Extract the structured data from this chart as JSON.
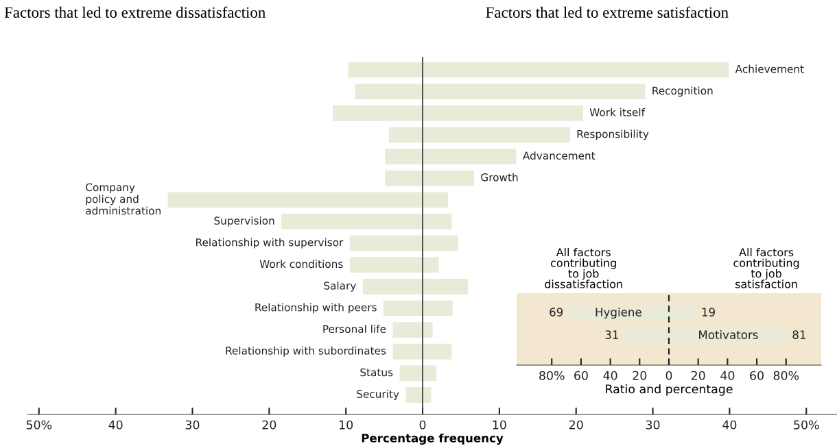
{
  "chart_data": [
    {
      "type": "bar",
      "orientation": "horizontal",
      "xlabel": "Percentage frequency",
      "annotations": [
        "Factors that led to extreme dissatisfaction",
        "Factors that led to extreme satisfaction"
      ],
      "categories": [
        "Achievement",
        "Recognition",
        "Work itself",
        "Responsibility",
        "Advancement",
        "Growth",
        "Company\npolicy and\nadministration",
        "Supervision",
        "Relationship with supervisor",
        "Work conditions",
        "Salary",
        "Relationship with peers",
        "Personal life",
        "Relationship with subordinates",
        "Status",
        "Security"
      ],
      "series": [
        {
          "color": "#e9ebd9",
          "values": [
            -9.7,
            -8.8,
            -11.7,
            -4.4,
            -4.9,
            -4.9,
            -33.2,
            -18.4,
            -9.5,
            -9.5,
            -7.8,
            -5.1,
            -3.9,
            -3.9,
            -3.0,
            -2.2
          ]
        },
        {
          "color": "#e9ebd9",
          "values": [
            39.9,
            29.0,
            20.9,
            19.2,
            12.2,
            6.7,
            3.3,
            3.8,
            4.6,
            2.1,
            5.9,
            3.9,
            1.3,
            3.8,
            1.8,
            1.1
          ]
        }
      ],
      "xlim": [
        -51.5,
        54
      ],
      "xticks": [
        {
          "value": -50,
          "label": "50%"
        },
        {
          "value": -40,
          "label": "40"
        },
        {
          "value": -30,
          "label": "30"
        },
        {
          "value": -20,
          "label": "20"
        },
        {
          "value": -10,
          "label": "10"
        },
        0,
        10,
        20,
        30,
        40,
        {
          "value": 50,
          "label": "50%"
        }
      ],
      "ref_lines": [
        {
          "axis": "x",
          "value": 0,
          "color": "#333333",
          "line_style": "solid"
        }
      ],
      "stacked": true,
      "grid": false,
      "tick_labels": "x"
    },
    {
      "type": "bar",
      "orientation": "horizontal",
      "xlabel": "Ratio and percentage",
      "annotations": [
        "All factors\ncontributing\nto job\ndissatisfaction",
        "All factors\ncontributing\nto job\nsatisfaction",
        {
          "text": "69",
          "x": -69,
          "y": "Hygiene"
        },
        {
          "text": "31",
          "x": -31,
          "y": "Motivators"
        }
      ],
      "categories": [
        "Hygiene",
        "Motivators"
      ],
      "series": [
        {
          "color": "#e9ebd9",
          "values": [
            -69,
            -31
          ]
        },
        {
          "color": "#e9ebd9",
          "values": [
            19,
            81
          ],
          "value_labels": [
            "19",
            "81"
          ]
        }
      ],
      "xlim": [
        -104,
        104
      ],
      "xticks": [
        {
          "value": -80,
          "label": "80%"
        },
        {
          "value": -60,
          "label": "60"
        },
        {
          "value": -40,
          "label": "40"
        },
        {
          "value": -20,
          "label": "20"
        },
        0,
        20,
        40,
        60,
        {
          "value": 80,
          "label": "80%"
        }
      ],
      "ref_lines": [
        {
          "axis": "x",
          "value": 0,
          "color": "#222222",
          "line_style": "dashed"
        }
      ],
      "stacked": true,
      "grid": false,
      "tick_labels": "x"
    }
  ]
}
